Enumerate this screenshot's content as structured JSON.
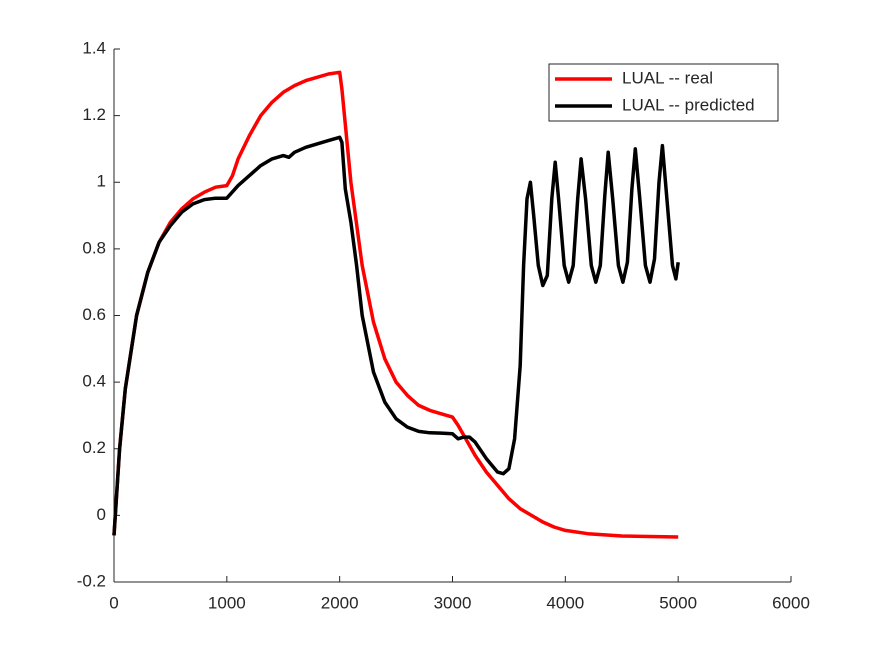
{
  "chart_data": {
    "type": "line",
    "xlim": [
      0,
      6000
    ],
    "xticks": [
      0,
      1000,
      2000,
      3000,
      4000,
      5000,
      6000
    ],
    "ylim": [
      -0.2,
      1.4
    ],
    "yticks": [
      -0.2,
      0,
      0.2,
      0.4,
      0.6,
      0.8,
      1,
      1.2,
      1.4
    ],
    "legend": "upper right",
    "series": [
      {
        "name": "LUAL -- real",
        "color": "#ff0000",
        "x": [
          0,
          50,
          100,
          200,
          300,
          400,
          500,
          600,
          700,
          800,
          900,
          1000,
          1050,
          1100,
          1200,
          1300,
          1400,
          1500,
          1600,
          1700,
          1800,
          1900,
          2000,
          2020,
          2100,
          2200,
          2300,
          2400,
          2500,
          2600,
          2700,
          2800,
          2900,
          3000,
          3050,
          3100,
          3200,
          3300,
          3400,
          3500,
          3600,
          3700,
          3800,
          3900,
          4000,
          4200,
          4500,
          5000
        ],
        "values": [
          -0.06,
          0.2,
          0.38,
          0.6,
          0.73,
          0.82,
          0.88,
          0.92,
          0.95,
          0.97,
          0.985,
          0.99,
          1.02,
          1.07,
          1.14,
          1.2,
          1.24,
          1.27,
          1.29,
          1.305,
          1.315,
          1.325,
          1.33,
          1.28,
          1.0,
          0.75,
          0.58,
          0.47,
          0.4,
          0.36,
          0.33,
          0.315,
          0.305,
          0.295,
          0.27,
          0.24,
          0.18,
          0.13,
          0.09,
          0.05,
          0.02,
          0.0,
          -0.02,
          -0.035,
          -0.045,
          -0.055,
          -0.062,
          -0.065
        ]
      },
      {
        "name": "LUAL -- predicted",
        "color": "#000000",
        "x": [
          0,
          50,
          100,
          200,
          300,
          400,
          500,
          600,
          700,
          800,
          900,
          1000,
          1100,
          1200,
          1300,
          1400,
          1500,
          1550,
          1600,
          1700,
          1800,
          1900,
          2000,
          2020,
          2050,
          2100,
          2150,
          2200,
          2300,
          2400,
          2500,
          2600,
          2700,
          2800,
          2900,
          3000,
          3050,
          3100,
          3150,
          3200,
          3300,
          3400,
          3450,
          3500,
          3550,
          3600,
          3630,
          3660,
          3690,
          3720,
          3760,
          3800,
          3840,
          3880,
          3910,
          3940,
          3990,
          4030,
          4070,
          4110,
          4140,
          4180,
          4230,
          4270,
          4310,
          4350,
          4380,
          4420,
          4470,
          4510,
          4550,
          4590,
          4620,
          4660,
          4710,
          4750,
          4790,
          4830,
          4860,
          4900,
          4950,
          4980,
          5000
        ],
        "values": [
          -0.06,
          0.2,
          0.38,
          0.6,
          0.73,
          0.82,
          0.87,
          0.91,
          0.935,
          0.948,
          0.952,
          0.952,
          0.99,
          1.02,
          1.05,
          1.07,
          1.08,
          1.075,
          1.09,
          1.105,
          1.115,
          1.125,
          1.135,
          1.12,
          0.98,
          0.88,
          0.75,
          0.6,
          0.43,
          0.34,
          0.29,
          0.265,
          0.252,
          0.248,
          0.247,
          0.245,
          0.23,
          0.235,
          0.235,
          0.22,
          0.17,
          0.13,
          0.125,
          0.14,
          0.23,
          0.45,
          0.75,
          0.95,
          1.0,
          0.9,
          0.75,
          0.69,
          0.72,
          0.95,
          1.06,
          0.95,
          0.75,
          0.7,
          0.75,
          0.95,
          1.07,
          0.95,
          0.75,
          0.7,
          0.75,
          0.96,
          1.09,
          0.95,
          0.75,
          0.7,
          0.76,
          0.98,
          1.1,
          0.95,
          0.75,
          0.7,
          0.77,
          1.0,
          1.11,
          0.95,
          0.75,
          0.71,
          0.76
        ]
      }
    ]
  }
}
